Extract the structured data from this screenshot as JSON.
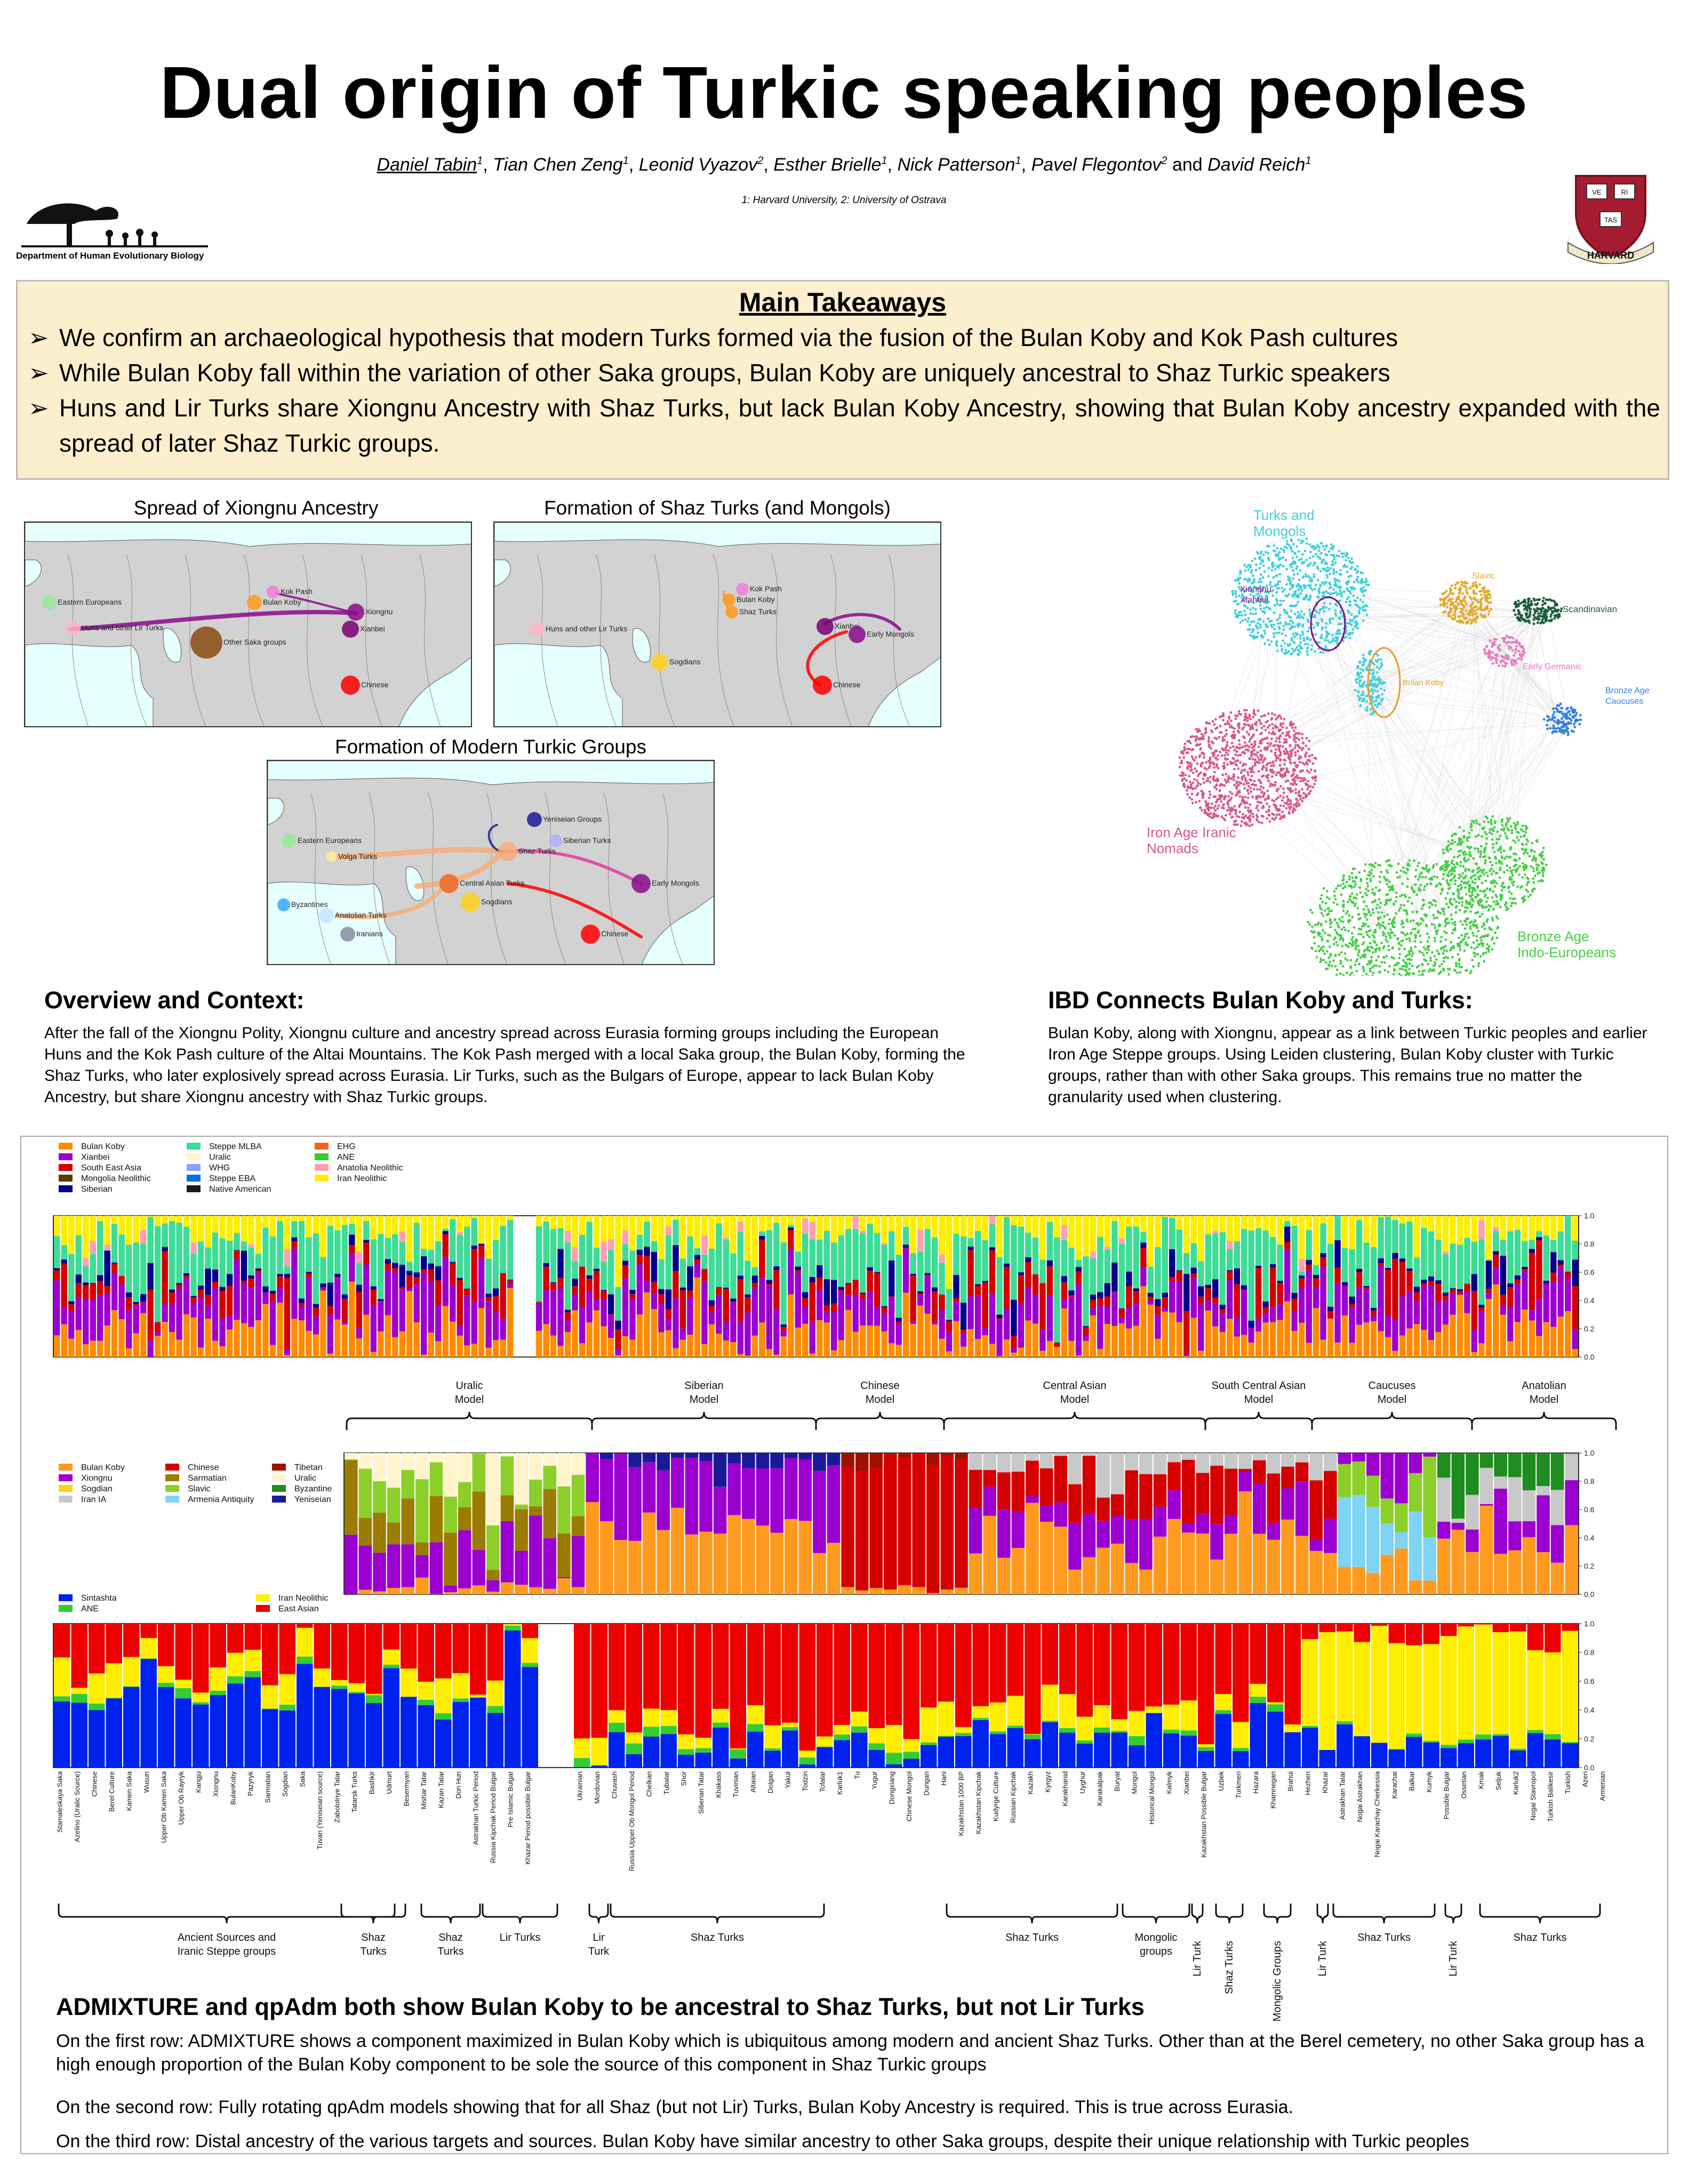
{
  "title": "Dual origin of Turkic speaking peoples",
  "authors": {
    "first": "Daniel Tabin",
    "list": [
      {
        "name": "Daniel Tabin",
        "aff": "1"
      },
      {
        "name": "Tian Chen Zeng",
        "aff": "1"
      },
      {
        "name": "Leonid Vyazov",
        "aff": "2"
      },
      {
        "name": "Esther Brielle",
        "aff": "1"
      },
      {
        "name": "Nick Patterson",
        "aff": "1"
      },
      {
        "name": "Pavel Flegontov",
        "aff": "2"
      },
      {
        "name": "David Reich",
        "aff": "1"
      }
    ],
    "affiliations": "1: Harvard University, 2: University of Ostrava"
  },
  "logos": {
    "department": "Department of Human Evolutionary Biology",
    "harvard": "HARVARD",
    "veritas": [
      "VE",
      "RI",
      "TAS"
    ]
  },
  "takeaways": {
    "heading": "Main Takeaways",
    "items": [
      "We confirm an archaeological hypothesis that modern Turks formed via the fusion of the Bulan Koby and Kok Pash cultures",
      "While Bulan Koby fall within the variation of other Saka groups, Bulan Koby are uniquely ancestral to Shaz Turkic speakers",
      "Huns and Lir Turks share Xiongnu Ancestry with Shaz Turks, but lack Bulan Koby Ancestry, showing that Bulan Koby ancestry expanded with the spread of later Shaz Turkic groups."
    ]
  },
  "maps": {
    "map1": {
      "title": "Spread of Xiongnu Ancestry",
      "labels": [
        "Eastern Europeans",
        "Huns and other Lir Turks",
        "Kok Pash",
        "Bulan Koby",
        "Xiongnu",
        "Xianbei",
        "Other Saka groups",
        "Chinese"
      ]
    },
    "map2": {
      "title": "Formation of Shaz Turks (and Mongols)",
      "labels": [
        "Kok Pash",
        "Bulan Koby",
        "Shaz Turks",
        "Huns and other Lir Turks",
        "Xianbei",
        "Early Mongols",
        "Sogdians",
        "Chinese"
      ]
    },
    "map3": {
      "title": "Formation of Modern Turkic Groups",
      "labels": [
        "Yeniseian Groups",
        "Eastern Europeans",
        "Siberian Turks",
        "Shaz Turks",
        "Volga Turks",
        "Central Asian Turks",
        "Early Mongols",
        "Byzantines",
        "Anatolian Turks",
        "Sogdians",
        "Iranians",
        "Chinese"
      ]
    }
  },
  "ibd_plot": {
    "labels": [
      "Turks and Mongols",
      "Xiongnu",
      "Xianbei",
      "Slavic",
      "Scandinavian",
      "Bulan Koby",
      "Early Germanic",
      "Bronze Age Caucuses",
      "Iron Age Iranic Nomads",
      "Bronze Age Indo-Europeans"
    ],
    "colors": {
      "turks": "#3fd0dc",
      "iron": "#d9568f",
      "bronze": "#44d044",
      "slavic": "#e3a92c",
      "scand": "#1b5e3b",
      "caucasus": "#2f80e0",
      "germanic": "#e67ac0"
    }
  },
  "overview": {
    "heading": "Overview and Context:",
    "body": "After the fall of the Xiongnu Polity, Xiongnu culture and ancestry spread across Eurasia forming groups including the European Huns and the Kok Pash culture of the Altai Mountains. The Kok Pash merged with a local Saka group, the Bulan Koby, forming the Shaz Turks, who later explosively spread across Eurasia. Lir Turks, such as the Bulgars of Europe, appear to lack Bulan Koby Ancestry, but share Xiongnu ancestry with Shaz Turkic groups."
  },
  "ibd": {
    "heading": "IBD Connects Bulan Koby and Turks:",
    "body": "Bulan Koby, along with Xiongnu, appear as a link between Turkic peoples and earlier Iron Age Steppe groups. Using Leiden clustering, Bulan Koby cluster with Turkic groups, rather than with other Saka groups. This remains true no matter the granularity used when clustering."
  },
  "legend1": [
    {
      "label": "Bulan Koby",
      "color": "#ff8c00"
    },
    {
      "label": "Xianbei",
      "color": "#9b00d0"
    },
    {
      "label": "South East Asia",
      "color": "#d40000"
    },
    {
      "label": "Mongolia Neolithic",
      "color": "#5c3a00"
    },
    {
      "label": "Siberian",
      "color": "#00008b"
    },
    {
      "label": "Steppe MLBA",
      "color": "#3ddc97"
    },
    {
      "label": "Uralic",
      "color": "#fff4cc"
    },
    {
      "label": "WHG",
      "color": "#8ea0ff"
    },
    {
      "label": "Steppe EBA",
      "color": "#0070e0"
    },
    {
      "label": "Native American",
      "color": "#1a1a1a"
    },
    {
      "label": "EHG",
      "color": "#f26522"
    },
    {
      "label": "ANE",
      "color": "#33cc33"
    },
    {
      "label": "Anatolia Neolithic",
      "color": "#ff9fb0"
    },
    {
      "label": "Iran Neolithic",
      "color": "#ffee00"
    }
  ],
  "legend2": [
    {
      "label": "Bulan Koby",
      "color": "#ff9a1f"
    },
    {
      "label": "Xiongnu",
      "color": "#9b00d0"
    },
    {
      "label": "Sogdian",
      "color": "#ffd21a"
    },
    {
      "label": "Iran IA",
      "color": "#c8c8c8"
    },
    {
      "label": "Chinese",
      "color": "#d40000"
    },
    {
      "label": "Sarmatian",
      "color": "#9b7b00"
    },
    {
      "label": "Slavic",
      "color": "#8ccf2a"
    },
    {
      "label": "Armenia Antiquity",
      "color": "#7fd4f5"
    },
    {
      "label": "Tibetan",
      "color": "#a01000"
    },
    {
      "label": "Uralic",
      "color": "#fff4cc"
    },
    {
      "label": "Byzantine",
      "color": "#1e8c1e"
    },
    {
      "label": "Yeniseian",
      "color": "#1a1a99"
    }
  ],
  "legend3": [
    {
      "label": "Sintashta",
      "color": "#0022ee"
    },
    {
      "label": "ANE",
      "color": "#33cc33"
    },
    {
      "label": "Iran Neolithic",
      "color": "#ffee00"
    },
    {
      "label": "East Asian",
      "color": "#ee0000"
    }
  ],
  "axis_ticks": [
    "0.0",
    "0.2",
    "0.4",
    "0.6",
    "0.8",
    "1.0"
  ],
  "model_groups": [
    "Uralic Model",
    "Siberian Model",
    "Chinese Model",
    "Central Asian Model",
    "South Central Asian Model",
    "Caucuses Model",
    "Anatolian Model"
  ],
  "population_labels": [
    "Stamaleskaya Saka",
    "Azelino (Uralic Source)",
    "Chinese",
    "Berel Culture",
    "Kamen Saka",
    "Wusun",
    "Upper Ob Kamen Saka",
    "Upper Ob Rayryk",
    "Kangju",
    "Xiongnu",
    "BulanKoby",
    "Pazyryk",
    "Sarmatian",
    "Sogdian",
    "Saka",
    "Tuvan (Yeniseian source)",
    "Zabolotnye Tatar",
    "Tatarsk Turks",
    "Bashkir",
    "Udmurt",
    "Besermyan",
    "Mishar Tatar",
    "Kazan Tatar",
    "Don Hun",
    "Astrakhan Turkic Period",
    "Russia Kipchak Period Bulgar",
    "Pre Islamic Bulgar",
    "Khazar Period possible Bulgar",
    "Ukrainian",
    "Mordovian",
    "Chuvash",
    "Russia Upper Ob Mongol Period",
    "Chelkan",
    "Tubalar",
    "Shor",
    "Siberian Tatar",
    "Khakass",
    "Tuvinian",
    "Altaian",
    "Dolgan",
    "Yakut",
    "Todzin",
    "Tofalar",
    "Karluk1",
    "Tu",
    "Yugur",
    "Dongxiang",
    "Chinese Mongol",
    "Dungan",
    "Hani",
    "Kazakhstan 1000 BP",
    "Kazakhstan Kipchak",
    "Kudyrge Culture",
    "Russian Kipchak",
    "Kazakh",
    "Kyrgyz",
    "Karakhanid",
    "Uyghur",
    "Karakalpak",
    "Buryat",
    "Mongol",
    "Historical Mongol",
    "Kalmyk",
    "Xianbei",
    "Kazakhstan Possible Bulgar",
    "Uzbek",
    "Turkmen",
    "Hazara",
    "Khamnegan",
    "Brahui",
    "Hezhen",
    "Khazar",
    "Astrakhan Tatar",
    "Nogai Astrakhan",
    "Nogai Karachay Cherkessia",
    "Karachai",
    "Balkar",
    "Kumyk",
    "Possible Bulgar",
    "Ossetian",
    "Kmak",
    "Seljuk",
    "Karluk2",
    "Nogai Stavropol",
    "Turkish Balikesir",
    "Turkish",
    "Azeri",
    "Armenian"
  ],
  "bottom_groups": [
    "Ancient Sources and Iranic Steppe groups",
    "Shaz Turks",
    "Shaz Turks",
    "Lir Turks",
    "Lir Turk",
    "Shaz Turks",
    "Shaz Turks",
    "Mongolic groups",
    "Lir Turk",
    "Shaz Turks",
    "Mongolic Groups",
    "Lir Turk",
    "Shaz Turks",
    "Lir Turk",
    "Shaz Turks"
  ],
  "admixture": {
    "heading": "ADMIXTURE and qpAdm both show Bulan Koby to be ancestral to Shaz Turks, but not Lir Turks",
    "paragraphs": [
      "On the first row: ADMIXTURE shows a component maximized in Bulan Koby which is ubiquitous among modern and ancient Shaz Turks. Other than at the Berel cemetery, no other Saka group has a high enough proportion of the Bulan Koby component to be sole the source of this component in Shaz Turkic groups",
      "On the second row: Fully rotating qpAdm models showing that for all Shaz (but not Lir) Turks, Bulan Koby Ancestry is required. This is true across Eurasia.",
      "On the third row: Distal ancestry of the various targets and sources. Bulan Koby have similar ancestry to other Saka groups, despite their unique relationship with Turkic peoples"
    ]
  }
}
